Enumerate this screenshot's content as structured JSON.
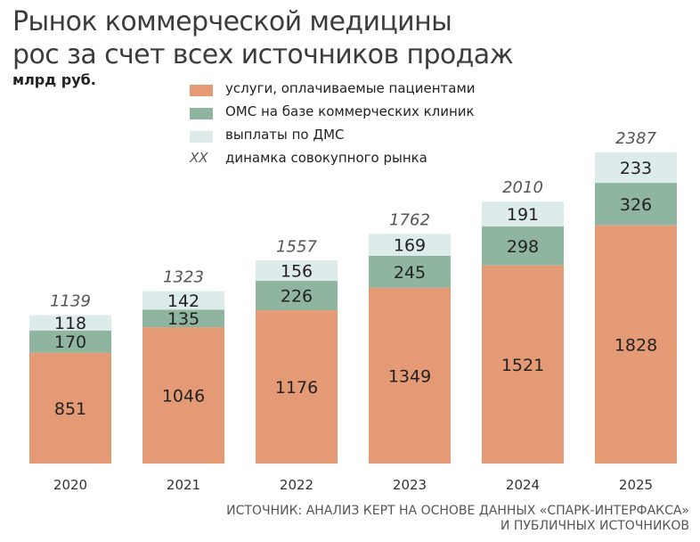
{
  "title_line1": "Рынок коммерческой медицины",
  "title_line2": "рос за счет всех источников продаж",
  "unit": "млрд руб.",
  "legend": [
    {
      "label": "услуги, оплачиваемые пациентами",
      "color": "#e49a74"
    },
    {
      "label": "ОМС на базе коммерческих клиник",
      "color": "#8fb5a0"
    },
    {
      "label": "выплаты по ДМС",
      "color": "#ddeceb"
    },
    {
      "symbol": "XX",
      "label": "динамка совокупного рынка"
    }
  ],
  "source_line1": "Источник: анализ КЕРТ на основе данных «СПАРК-Интерфакса»",
  "source_line2": "и публичных источников",
  "chart_data": {
    "type": "bar",
    "stacked": true,
    "categories": [
      "2020",
      "2021",
      "2022",
      "2023",
      "2024",
      "2025"
    ],
    "series": [
      {
        "name": "услуги, оплачиваемые пациентами",
        "color": "#e49a74",
        "values": [
          851,
          1046,
          1176,
          1349,
          1521,
          1828
        ]
      },
      {
        "name": "ОМС на базе коммерческих клиник",
        "color": "#8fb5a0",
        "values": [
          170,
          135,
          226,
          245,
          298,
          326
        ]
      },
      {
        "name": "выплаты по ДМС",
        "color": "#ddeceb",
        "values": [
          118,
          142,
          156,
          169,
          191,
          233
        ]
      }
    ],
    "totals": [
      1139,
      1323,
      1557,
      1762,
      2010,
      2387
    ],
    "ylim": [
      0,
      2387
    ],
    "grid": false
  }
}
